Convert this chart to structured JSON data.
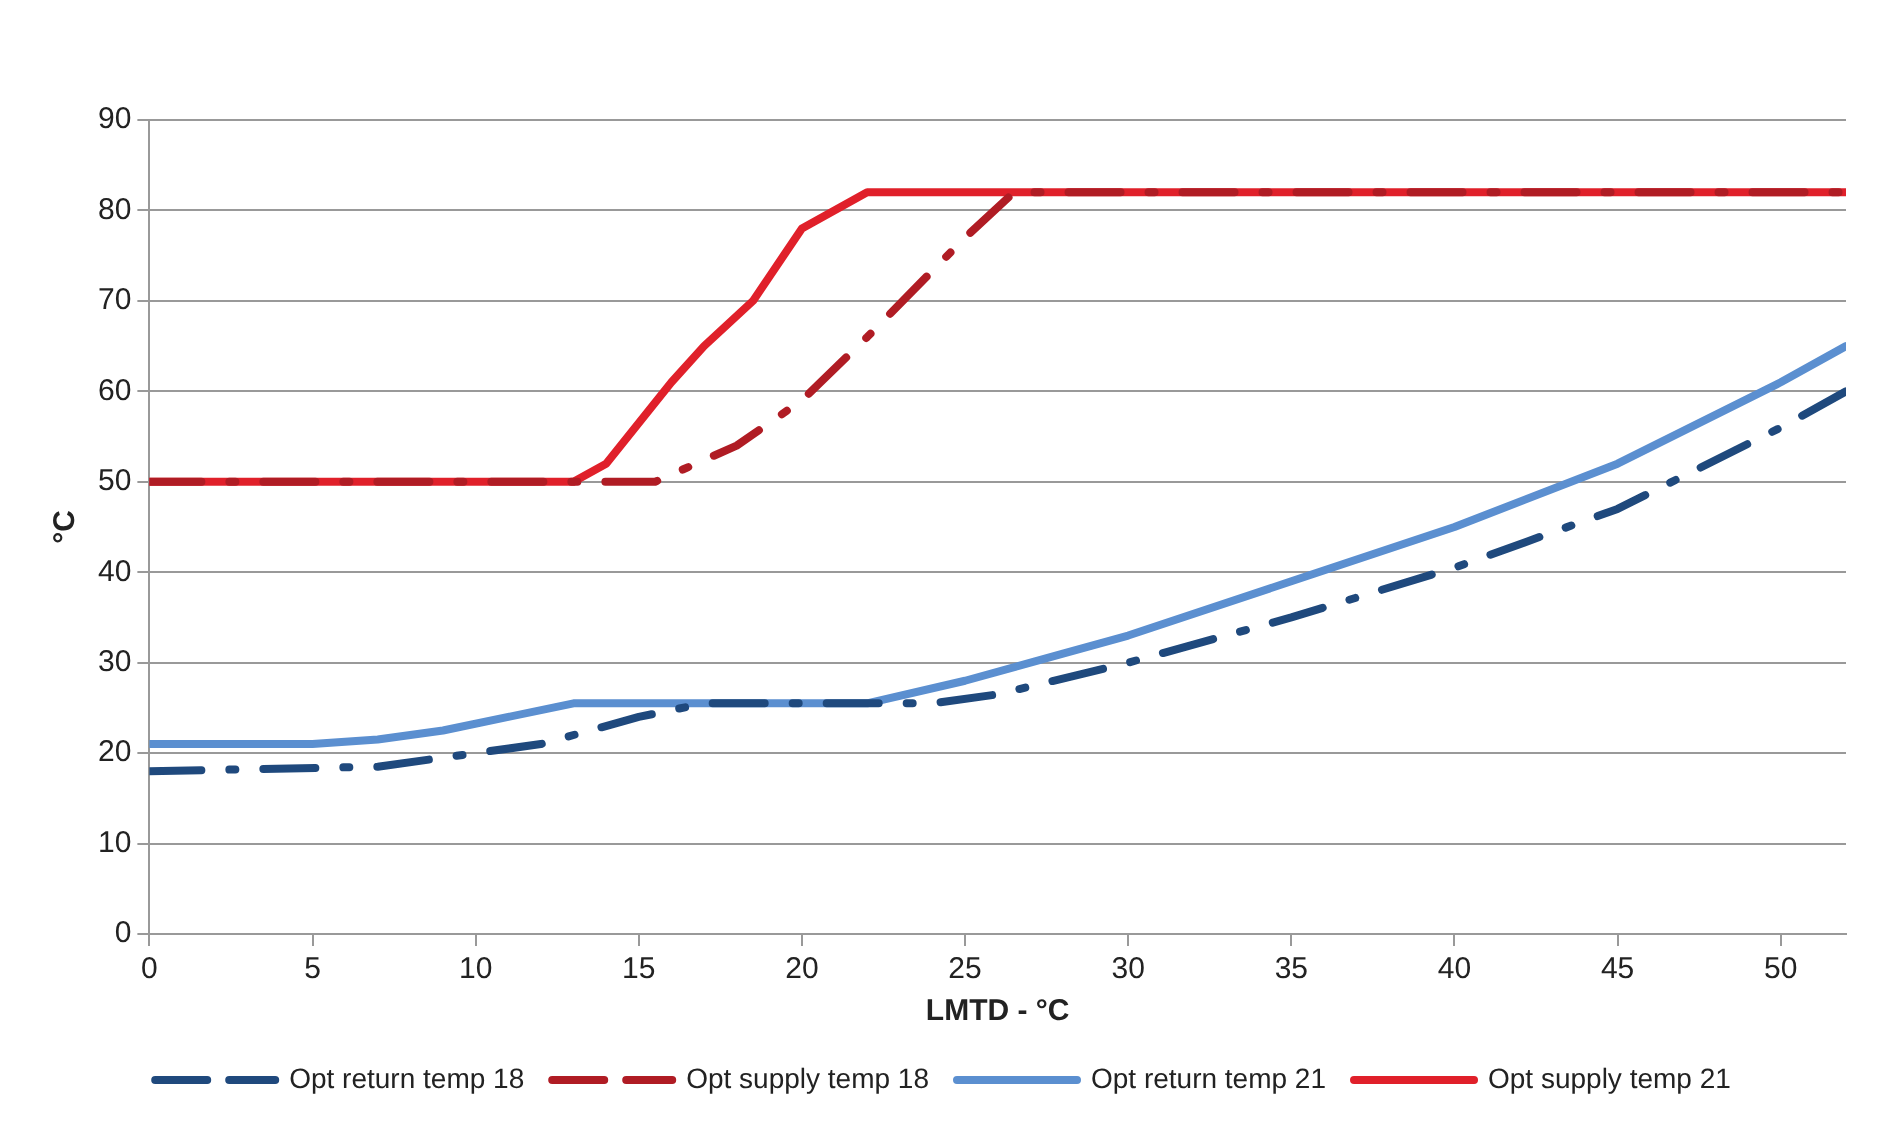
{
  "chart_data": {
    "type": "line",
    "xlabel": "LMTD - °C",
    "ylabel": "°C",
    "xlim": [
      0,
      52
    ],
    "xticks": [
      0,
      5,
      10,
      15,
      20,
      25,
      30,
      35,
      40,
      45,
      50
    ],
    "ylim": [
      0,
      90
    ],
    "yticks": [
      0,
      10,
      20,
      30,
      40,
      50,
      60,
      70,
      80,
      90
    ],
    "grid": "y",
    "legend": "bottom",
    "marker": "none",
    "series": [
      {
        "name": "Opt return temp 21",
        "color": "#5b8fd0",
        "line_style": "solid",
        "x": [
          0,
          5,
          7,
          9,
          11,
          13,
          22,
          25,
          28,
          30,
          35,
          40,
          45,
          50,
          52
        ],
        "values": [
          21,
          21,
          21.5,
          22.5,
          24,
          25.5,
          25.5,
          28,
          31,
          33,
          39,
          45,
          52,
          61,
          65
        ]
      },
      {
        "name": "Opt supply temp 21",
        "color": "#e0202a",
        "line_style": "solid",
        "x": [
          0,
          13,
          14,
          16,
          17,
          18.5,
          20,
          22,
          52
        ],
        "values": [
          50,
          50,
          52,
          61,
          65,
          70,
          78,
          82,
          82
        ]
      },
      {
        "name": "Opt return temp 18",
        "color": "#1f497d",
        "line_style": "dashed",
        "x": [
          0,
          7,
          10,
          12,
          15,
          17,
          24,
          26,
          30,
          35,
          40,
          45,
          50,
          52
        ],
        "values": [
          18,
          18.5,
          20,
          21,
          24,
          25.5,
          25.5,
          26.5,
          30,
          35,
          40.5,
          47,
          56,
          60
        ]
      },
      {
        "name": "Opt supply temp 18",
        "color": "#b01c24",
        "line_style": "dashed",
        "x": [
          0,
          15.5,
          18,
          20,
          22,
          25,
          26.5,
          52
        ],
        "values": [
          50,
          50,
          54,
          59,
          66,
          77,
          82,
          82
        ]
      }
    ]
  }
}
